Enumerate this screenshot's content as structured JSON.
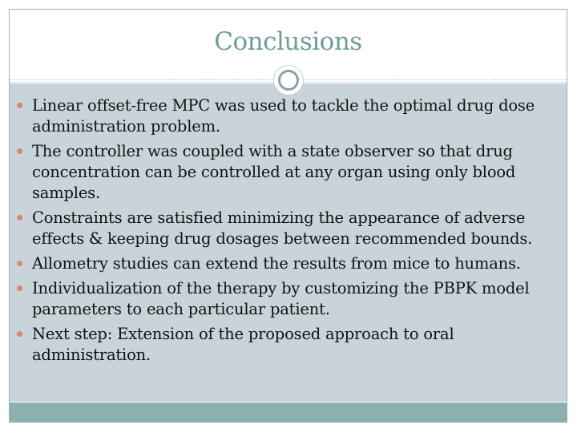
{
  "slide": {
    "title": "Conclusions",
    "bullets": [
      "Linear offset-free MPC was used to tackle the optimal drug dose administration problem.",
      "The controller was coupled with a state observer so that drug concentration can be controlled at any organ using only blood samples.",
      "Constraints are satisfied minimizing the appearance of adverse effects & keeping drug dosages between recommended bounds.",
      "Allometry studies can extend the results from mice to humans.",
      "Individualization of the therapy by customizing the PBPK model parameters to each particular patient.",
      "Next step: Extension of the proposed approach to oral administration."
    ]
  },
  "colors": {
    "title": "#6f9c99",
    "content_background": "#c9d4da",
    "footer_band": "#8bb0ae",
    "bullet_marker": "#d9876e",
    "body_text": "#111111"
  },
  "icons": {
    "divider_ornament": "circle-ornament-icon",
    "bullet_marker": "bullet-dot-icon"
  }
}
